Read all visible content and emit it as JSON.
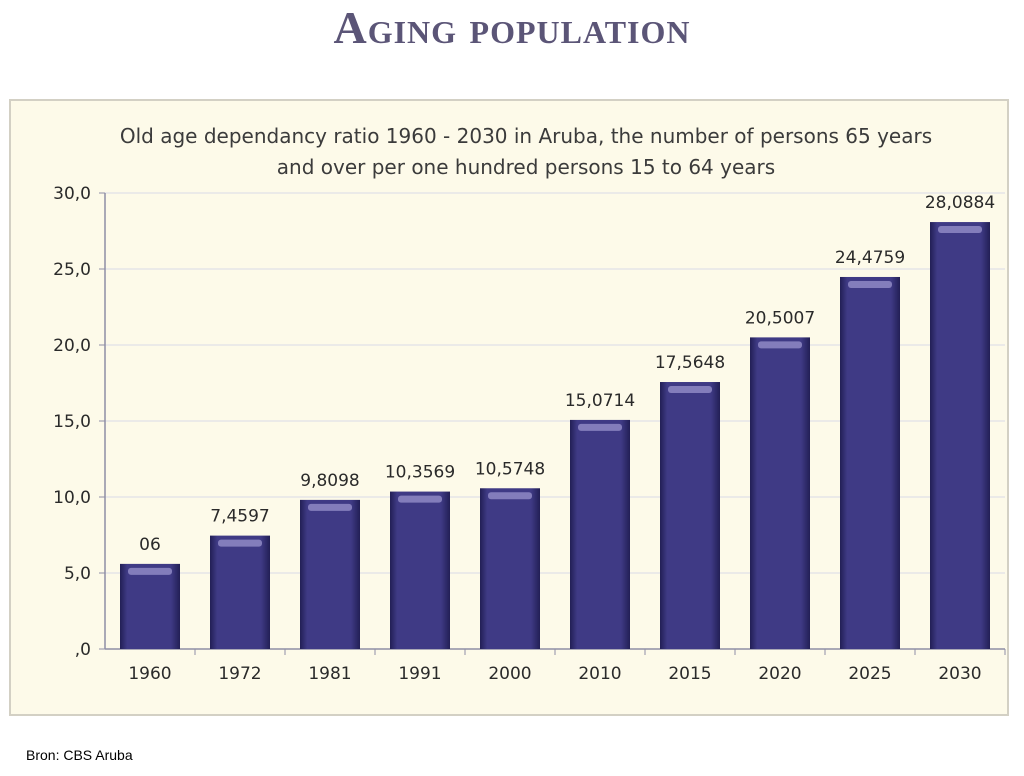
{
  "slide": {
    "title": "Aging population",
    "source": "Bron: CBS Aruba"
  },
  "colors": {
    "bar": "#3f3a85",
    "bar_dark": "#221f55",
    "bar_highlight": "#8f8ac4",
    "grid": "#d9d9e6",
    "axis": "#8e8ea6",
    "plot_background": "#fdfae9"
  },
  "chart_data": {
    "type": "bar",
    "title": "Old age  dependancy ratio 1960 - 2030  in Aruba, the number of persons 65 years and over per one hundred persons 15 to 64 years",
    "xlabel": "",
    "ylabel": "",
    "categories": [
      "1960",
      "1972",
      "1981",
      "1991",
      "2000",
      "2010",
      "2015",
      "2020",
      "2025",
      "2030"
    ],
    "values": [
      5.6,
      7.4597,
      9.8098,
      10.3569,
      10.5748,
      15.0714,
      17.5648,
      20.5007,
      24.4759,
      28.0884
    ],
    "data_labels": [
      "06",
      "7,4597",
      "9,8098",
      "10,3569",
      "10,5748",
      "15,0714",
      "17,5648",
      "20,5007",
      "24,4759",
      "28,0884"
    ],
    "ylim": [
      0,
      30
    ],
    "yticks": [
      0,
      5,
      10,
      15,
      20,
      25,
      30
    ],
    "ytick_labels": [
      ",0",
      "5,0",
      "10,0",
      "15,0",
      "20,0",
      "25,0",
      "30,0"
    ],
    "grid": true,
    "legend": "none"
  }
}
